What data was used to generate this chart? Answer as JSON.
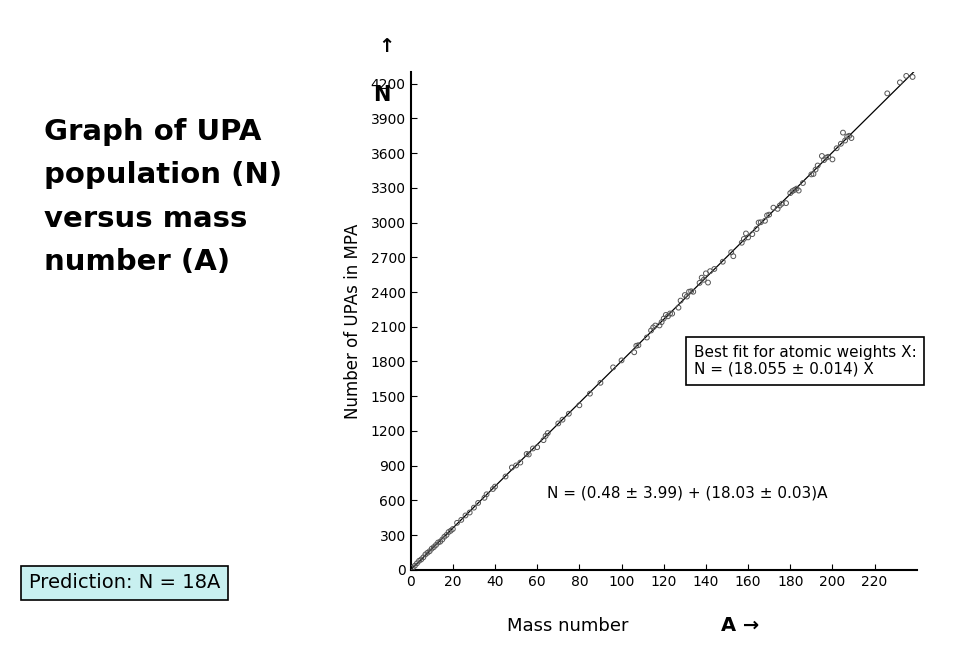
{
  "title_text": "Graph of UPA\npopulation (N)\nversus mass\nnumber (A)",
  "prediction_text": "Prediction: N = 18A",
  "ylabel": "Number of UPAs in MPA",
  "xlabel_main": "Mass number",
  "xlabel_arrow": "A →",
  "ylabel_arrow_up": "↑",
  "ylabel_arrow_N": "N",
  "fit_label": "N = (0.48 ± 3.99) + (18.03 ± 0.03)A",
  "box_label_line1": "Best fit for atomic weights X:",
  "box_label_line2": "N = (18.055 ± 0.014) X",
  "slope": 18.03,
  "intercept": 0.48,
  "x_data": [
    1,
    2,
    3,
    4,
    5,
    6,
    7,
    8,
    9,
    10,
    11,
    12,
    13,
    14,
    15,
    16,
    17,
    18,
    19,
    20,
    22,
    24,
    26,
    28,
    30,
    32,
    35,
    36,
    39,
    40,
    45,
    48,
    50,
    52,
    55,
    56,
    58,
    60,
    63,
    64,
    65,
    70,
    72,
    75,
    80,
    85,
    90,
    96,
    100,
    106,
    107,
    108,
    112,
    114,
    115,
    116,
    118,
    119,
    120,
    121,
    122,
    123,
    124,
    127,
    128,
    130,
    131,
    132,
    133,
    134,
    137,
    138,
    139,
    140,
    141,
    142,
    144,
    148,
    152,
    153,
    157,
    158,
    159,
    160,
    162,
    164,
    165,
    166,
    168,
    169,
    170,
    172,
    174,
    175,
    176,
    178,
    180,
    181,
    182,
    183,
    184,
    186,
    190,
    191,
    192,
    193,
    195,
    196,
    197,
    198,
    200,
    202,
    204,
    205,
    206,
    207,
    208,
    209,
    226,
    232,
    235,
    238
  ],
  "x_min": 0,
  "x_max": 240,
  "y_min": 0,
  "y_max": 4300,
  "x_ticks": [
    0,
    20,
    40,
    60,
    80,
    100,
    120,
    140,
    160,
    180,
    200,
    220
  ],
  "y_ticks": [
    0,
    300,
    600,
    900,
    1200,
    1500,
    1800,
    2100,
    2400,
    2700,
    3000,
    3300,
    3600,
    3900,
    4200
  ],
  "bg_color": "#ffffff",
  "data_color": "#555555",
  "line_color": "#000000",
  "prediction_box_color": "#c8f0f0",
  "title_fontsize": 21,
  "label_fontsize": 13,
  "tick_fontsize": 10,
  "annot_fontsize": 11,
  "ylabel_fontsize": 12
}
